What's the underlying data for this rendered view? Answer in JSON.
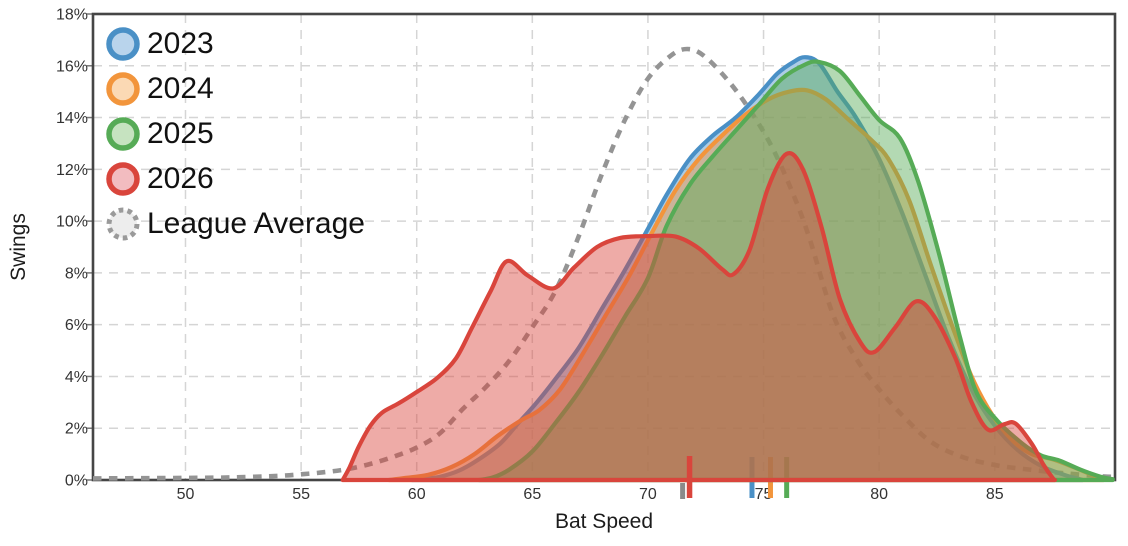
{
  "chart": {
    "x_axis": {
      "label": "Bat Speed",
      "ticks": [
        {
          "v": 50,
          "label": "50"
        },
        {
          "v": 55,
          "label": "55"
        },
        {
          "v": 60,
          "label": "60"
        },
        {
          "v": 65,
          "label": "65"
        },
        {
          "v": 70,
          "label": "70"
        },
        {
          "v": 75,
          "label": "75"
        },
        {
          "v": 80,
          "label": "80"
        },
        {
          "v": 85,
          "label": "85"
        }
      ]
    },
    "y_axis": {
      "label": "Swings",
      "ticks": [
        {
          "v": 0,
          "label": "0%"
        },
        {
          "v": 2,
          "label": "2%"
        },
        {
          "v": 4,
          "label": "4%"
        },
        {
          "v": 6,
          "label": "6%"
        },
        {
          "v": 8,
          "label": "8%"
        },
        {
          "v": 10,
          "label": "10%"
        },
        {
          "v": 12,
          "label": "12%"
        },
        {
          "v": 14,
          "label": "14%"
        },
        {
          "v": 16,
          "label": "16%"
        },
        {
          "v": 18,
          "label": "18%"
        }
      ]
    }
  },
  "legend": {
    "items": [
      {
        "label": "2023",
        "ring": "#4a90c6",
        "fill": "#b9d4ec",
        "dashed": false
      },
      {
        "label": "2024",
        "ring": "#f2953c",
        "fill": "#fbd9b4",
        "dashed": false
      },
      {
        "label": "2025",
        "ring": "#56ab56",
        "fill": "#c6e3c0",
        "dashed": false
      },
      {
        "label": "2026",
        "ring": "#d9453c",
        "fill": "#f2bcc0",
        "dashed": false
      },
      {
        "label": "League Average",
        "ring": "#9a9a9a",
        "fill": "#ededed",
        "dashed": true
      }
    ]
  },
  "colors": {
    "axis_border": "#454545",
    "gridline": "#d5d5d5",
    "tick_text": "#333333",
    "axis_label_text": "#1c1c1c",
    "league_dash": "#949494"
  },
  "chart_data": {
    "type": "area",
    "subtype": "kde-density",
    "title": "",
    "xlabel": "Bat Speed",
    "ylabel": "Swings",
    "xlim": [
      46,
      90.2
    ],
    "ylim": [
      0,
      18
    ],
    "y_unit": "percent of swings",
    "grid": true,
    "legend_position": "top-left",
    "series": [
      {
        "name": "League Average",
        "color": "#949494",
        "line_style": "dashed",
        "fill_opacity": 0,
        "mean": 71.5,
        "points": [
          [
            46,
            0.06
          ],
          [
            48,
            0.07
          ],
          [
            50,
            0.08
          ],
          [
            52,
            0.1
          ],
          [
            54,
            0.16
          ],
          [
            55,
            0.22
          ],
          [
            56,
            0.3
          ],
          [
            57,
            0.42
          ],
          [
            58,
            0.62
          ],
          [
            59,
            0.9
          ],
          [
            60,
            1.25
          ],
          [
            61,
            1.8
          ],
          [
            62,
            2.75
          ],
          [
            63,
            3.6
          ],
          [
            64,
            4.6
          ],
          [
            65,
            5.9
          ],
          [
            66,
            7.3
          ],
          [
            67,
            9.4
          ],
          [
            68,
            11.8
          ],
          [
            69,
            13.9
          ],
          [
            70,
            15.5
          ],
          [
            71,
            16.4
          ],
          [
            71.7,
            16.65
          ],
          [
            72.4,
            16.4
          ],
          [
            73.4,
            15.5
          ],
          [
            74.4,
            14.3
          ],
          [
            75.4,
            12.8
          ],
          [
            76.3,
            11.0
          ],
          [
            77,
            9.3
          ],
          [
            78,
            6.4
          ],
          [
            79,
            4.7
          ],
          [
            80,
            3.5
          ],
          [
            81,
            2.5
          ],
          [
            82.2,
            1.5
          ],
          [
            83.5,
            0.92
          ],
          [
            85,
            0.58
          ],
          [
            86.5,
            0.4
          ],
          [
            88,
            0.26
          ],
          [
            89.5,
            0.15
          ],
          [
            90.1,
            0.12
          ]
        ]
      },
      {
        "name": "2023",
        "color": "#4a90c6",
        "line_style": "solid",
        "fill_opacity": 0.45,
        "mean": 74.5,
        "points": [
          [
            59.8,
            0
          ],
          [
            60.5,
            0.06
          ],
          [
            61,
            0.12
          ],
          [
            61.8,
            0.35
          ],
          [
            62.6,
            0.75
          ],
          [
            63.6,
            1.4
          ],
          [
            64.4,
            2.2
          ],
          [
            65.2,
            3.0
          ],
          [
            66,
            3.9
          ],
          [
            67,
            5.1
          ],
          [
            68,
            6.6
          ],
          [
            69,
            8.1
          ],
          [
            70,
            9.7
          ],
          [
            70.8,
            11.0
          ],
          [
            71.8,
            12.4
          ],
          [
            72.8,
            13.3
          ],
          [
            73.8,
            14.0
          ],
          [
            74.8,
            14.9
          ],
          [
            75.6,
            15.7
          ],
          [
            76.3,
            16.15
          ],
          [
            76.8,
            16.33
          ],
          [
            77.4,
            16.1
          ],
          [
            78.2,
            15.0
          ],
          [
            79,
            14.0
          ],
          [
            80,
            12.4
          ],
          [
            81,
            10.3
          ],
          [
            82,
            7.9
          ],
          [
            83,
            5.5
          ],
          [
            84,
            3.5
          ],
          [
            85,
            2.1
          ],
          [
            86,
            1.15
          ],
          [
            87,
            0.55
          ],
          [
            88,
            0.2
          ],
          [
            88.6,
            0.05
          ],
          [
            88.8,
            0
          ]
        ]
      },
      {
        "name": "2024",
        "color": "#f2953c",
        "line_style": "solid",
        "fill_opacity": 0.45,
        "mean": 75.3,
        "points": [
          [
            58.8,
            0
          ],
          [
            59.5,
            0.08
          ],
          [
            60.5,
            0.2
          ],
          [
            61.5,
            0.5
          ],
          [
            62.5,
            1.0
          ],
          [
            63.5,
            1.7
          ],
          [
            64.5,
            2.3
          ],
          [
            65.3,
            2.7
          ],
          [
            66.2,
            3.5
          ],
          [
            67.2,
            4.9
          ],
          [
            68.2,
            6.4
          ],
          [
            69.2,
            7.9
          ],
          [
            70.2,
            9.6
          ],
          [
            71.2,
            11.2
          ],
          [
            72.2,
            12.4
          ],
          [
            73.2,
            13.3
          ],
          [
            74.2,
            14.1
          ],
          [
            75.2,
            14.7
          ],
          [
            76.1,
            15.0
          ],
          [
            76.9,
            15.05
          ],
          [
            77.7,
            14.7
          ],
          [
            78.7,
            13.9
          ],
          [
            79.7,
            13.1
          ],
          [
            80.4,
            12.4
          ],
          [
            81.3,
            10.8
          ],
          [
            82.2,
            8.4
          ],
          [
            83.1,
            6.1
          ],
          [
            84,
            4.0
          ],
          [
            84.9,
            2.5
          ],
          [
            85.8,
            1.5
          ],
          [
            86.6,
            1.0
          ],
          [
            87.5,
            0.8
          ],
          [
            88.4,
            0.5
          ],
          [
            89.2,
            0.2
          ],
          [
            89.7,
            0.05
          ]
        ]
      },
      {
        "name": "2025",
        "color": "#56ab56",
        "line_style": "solid",
        "fill_opacity": 0.45,
        "mean": 76.0,
        "points": [
          [
            62.7,
            0
          ],
          [
            63.3,
            0.1
          ],
          [
            64,
            0.4
          ],
          [
            65,
            1.1
          ],
          [
            66,
            2.2
          ],
          [
            67,
            3.4
          ],
          [
            68,
            4.8
          ],
          [
            69,
            6.3
          ],
          [
            70,
            7.8
          ],
          [
            70.8,
            9.8
          ],
          [
            71.8,
            11.4
          ],
          [
            72.8,
            12.5
          ],
          [
            73.8,
            13.5
          ],
          [
            74.8,
            14.5
          ],
          [
            75.8,
            15.5
          ],
          [
            76.8,
            16.05
          ],
          [
            77.4,
            16.15
          ],
          [
            78.3,
            15.8
          ],
          [
            79.2,
            14.8
          ],
          [
            80,
            13.9
          ],
          [
            80.9,
            13.2
          ],
          [
            81.7,
            11.5
          ],
          [
            82.6,
            8.7
          ],
          [
            83.5,
            5.5
          ],
          [
            84.2,
            3.4
          ],
          [
            85.1,
            2.3
          ],
          [
            86.2,
            1.4
          ],
          [
            87,
            0.95
          ],
          [
            87.8,
            0.75
          ],
          [
            88.7,
            0.4
          ],
          [
            89.6,
            0.12
          ],
          [
            90.1,
            0.03
          ]
        ]
      },
      {
        "name": "2026",
        "color": "#d9453c",
        "line_style": "solid",
        "fill_opacity": 0.45,
        "mean": 71.8,
        "points": [
          [
            56.8,
            0
          ],
          [
            57.1,
            0.5
          ],
          [
            57.5,
            1.3
          ],
          [
            58,
            2.1
          ],
          [
            58.5,
            2.6
          ],
          [
            59.2,
            2.95
          ],
          [
            60,
            3.4
          ],
          [
            60.9,
            3.95
          ],
          [
            61.7,
            4.7
          ],
          [
            62.4,
            5.9
          ],
          [
            63.2,
            7.3
          ],
          [
            63.9,
            8.45
          ],
          [
            64.8,
            7.9
          ],
          [
            65.9,
            7.4
          ],
          [
            66.8,
            8.2
          ],
          [
            67.8,
            9.0
          ],
          [
            68.8,
            9.35
          ],
          [
            70,
            9.42
          ],
          [
            71.2,
            9.4
          ],
          [
            72.2,
            8.95
          ],
          [
            73.2,
            8.15
          ],
          [
            73.7,
            7.95
          ],
          [
            74.4,
            8.9
          ],
          [
            75.2,
            11.3
          ],
          [
            76,
            12.6
          ],
          [
            76.7,
            12.0
          ],
          [
            77.5,
            9.8
          ],
          [
            78.3,
            7.0
          ],
          [
            79.2,
            5.3
          ],
          [
            79.8,
            4.95
          ],
          [
            80.7,
            5.9
          ],
          [
            81.6,
            6.9
          ],
          [
            82.4,
            6.3
          ],
          [
            83.3,
            4.7
          ],
          [
            84,
            3.0
          ],
          [
            84.7,
            1.95
          ],
          [
            85.4,
            2.15
          ],
          [
            85.9,
            2.18
          ],
          [
            86.6,
            1.4
          ],
          [
            87.1,
            0.6
          ],
          [
            87.5,
            0.08
          ],
          [
            87.6,
            0
          ]
        ]
      }
    ]
  }
}
